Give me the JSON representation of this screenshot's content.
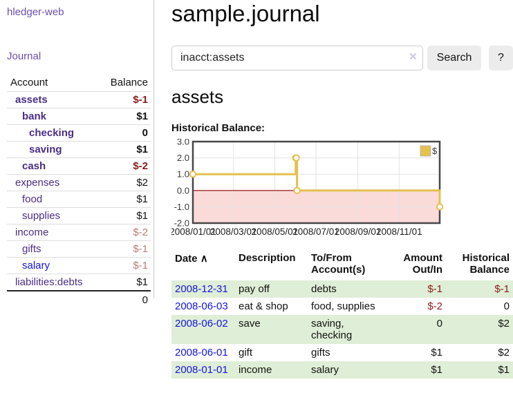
{
  "colors": {
    "nav_link_purple": "#6b4fae",
    "account_link_purple": "#4b2d86",
    "unvisited_link_blue": "#1414e0",
    "negative_strong": "#8b1a1a",
    "negative_soft": "#c07878",
    "row_stripe_green": "#dfeed6",
    "chart_line_gold": "#e4c04d",
    "chart_negative_fill": "#fbdada",
    "chart_zero_line": "#8b0000"
  },
  "sidebar": {
    "app_title": "hledger-web",
    "nav_label": "Journal",
    "table": {
      "account_header": "Account",
      "balance_header": "Balance",
      "rows": [
        {
          "account": "assets",
          "balance": "$-1",
          "depth": 0,
          "bold": true
        },
        {
          "account": "bank",
          "balance": "$1",
          "depth": 1,
          "bold": true
        },
        {
          "account": "checking",
          "balance": "0",
          "depth": 2,
          "bold": true
        },
        {
          "account": "saving",
          "balance": "$1",
          "depth": 2,
          "bold": true
        },
        {
          "account": "cash",
          "balance": "$-2",
          "depth": 1,
          "bold": true
        },
        {
          "account": "expenses",
          "balance": "$2",
          "depth": 0,
          "bold": false
        },
        {
          "account": "food",
          "balance": "$1",
          "depth": 1,
          "bold": false
        },
        {
          "account": "supplies",
          "balance": "$1",
          "depth": 1,
          "bold": false
        },
        {
          "account": "income",
          "balance": "$-2",
          "depth": 0,
          "bold": false
        },
        {
          "account": "gifts",
          "balance": "$-1",
          "depth": 1,
          "bold": false
        },
        {
          "account": "salary",
          "balance": "$-1",
          "depth": 1,
          "bold": false,
          "link_style": "unvisited"
        },
        {
          "account": "liabilities:debts",
          "balance": "$1",
          "depth": 0,
          "bold": false
        }
      ],
      "total": "0"
    }
  },
  "main": {
    "title": "sample.journal",
    "search": {
      "value": "inacct:assets",
      "clear_icon": "×",
      "search_button": "Search",
      "help_button": "?"
    },
    "account_heading": "assets",
    "section_label": "Historical Balance:"
  },
  "chart_data": {
    "type": "line",
    "step": true,
    "title": "Historical Balance",
    "series": [
      {
        "name": "$",
        "color": "#e4c04d",
        "points": [
          [
            "2008-01-01",
            1
          ],
          [
            "2008-06-01",
            2
          ],
          [
            "2008-06-02",
            2
          ],
          [
            "2008-06-03",
            0
          ],
          [
            "2008-12-31",
            -1
          ]
        ]
      }
    ],
    "x_domain": [
      "2008-01-01",
      "2008-12-31"
    ],
    "x_ticks": [
      "2008/01/01",
      "2008/03/01",
      "2008/05/01",
      "2008/07/01",
      "2008/09/01",
      "2008/11/01"
    ],
    "y_ticks": [
      3,
      2,
      1,
      0,
      -1,
      -2
    ],
    "ylim": [
      -2,
      3
    ],
    "grid": true,
    "legend": {
      "label": "$",
      "position": "top-right"
    },
    "negative_region_fill": "#fbdada",
    "zero_line_color": "#8b0000"
  },
  "register": {
    "headers": {
      "date": "Date",
      "description": "Description",
      "accounts": "To/From Account(s)",
      "amount": "Amount Out/In",
      "balance": "Historical Balance"
    },
    "sort_icon": "∧",
    "rows": [
      {
        "date": "2008-12-31",
        "description": "pay off",
        "accounts": "debts",
        "amount": "$-1",
        "balance": "$-1"
      },
      {
        "date": "2008-06-03",
        "description": "eat & shop",
        "accounts": "food, supplies",
        "amount": "$-2",
        "balance": "0"
      },
      {
        "date": "2008-06-02",
        "description": "save",
        "accounts": "saving, checking",
        "amount": "0",
        "balance": "$2"
      },
      {
        "date": "2008-06-01",
        "description": "gift",
        "accounts": "gifts",
        "amount": "$1",
        "balance": "$2"
      },
      {
        "date": "2008-01-01",
        "description": "income",
        "accounts": "salary",
        "amount": "$1",
        "balance": "$1"
      }
    ]
  }
}
